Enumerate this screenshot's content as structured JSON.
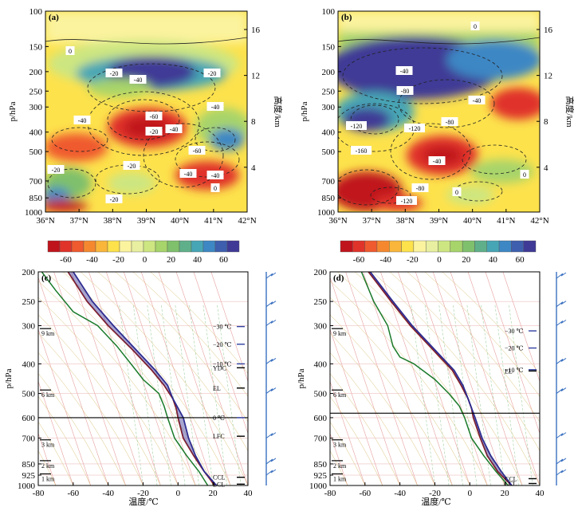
{
  "chart_data": [
    {
      "type": "heatmap",
      "panel": "(a)",
      "ylabel": "p/hPa",
      "y2label": "高度/km",
      "x_ticks": [
        "36°N",
        "37°N",
        "38°N",
        "39°N",
        "40°N",
        "41°N",
        "42°N"
      ],
      "y_ticks": [
        "100",
        "150",
        "200",
        "250",
        "300",
        "400",
        "500",
        "700",
        "850",
        "1000"
      ],
      "y2_ticks": [
        "16",
        "12",
        "8",
        "4"
      ],
      "contour_labels": [
        "0",
        "-20",
        "-40",
        "-20",
        "-40",
        "-60",
        "-20",
        "-40",
        "-40",
        "-60",
        "-20",
        "-40",
        "-40",
        "-20",
        "0",
        "-20"
      ]
    },
    {
      "type": "heatmap",
      "panel": "(b)",
      "ylabel": "p/hPa",
      "y2label": "高度/km",
      "x_ticks": [
        "36°N",
        "37°N",
        "38°N",
        "39°N",
        "40°N",
        "41°N",
        "42°N"
      ],
      "y_ticks": [
        "100",
        "150",
        "200",
        "250",
        "300",
        "400",
        "500",
        "700",
        "850",
        "1000"
      ],
      "y2_ticks": [
        "16",
        "12",
        "8",
        "4"
      ],
      "contour_labels": [
        "0",
        "-40",
        "-80",
        "-40",
        "-120",
        "-120",
        "-80",
        "-160",
        "-40",
        "0",
        "-80",
        "-120",
        "0"
      ]
    },
    {
      "type": "colorbar",
      "ticks": [
        "-60",
        "-40",
        "-20",
        "0",
        "20",
        "40",
        "60"
      ],
      "colors": [
        "#c0141c",
        "#e0332a",
        "#ef5a2e",
        "#f5882f",
        "#f9b63a",
        "#fde24c",
        "#fbf39e",
        "#e8efa0",
        "#cde681",
        "#a7d46b",
        "#7fc06c",
        "#5fb08a",
        "#47a6b5",
        "#3d87c4",
        "#3e5fae",
        "#3f3a96"
      ]
    },
    {
      "type": "line",
      "panel": "(c)",
      "ylabel": "p/hPa",
      "xlabel": "温度/℃",
      "x_ticks": [
        "-80",
        "-60",
        "-40",
        "-20",
        "0",
        "20",
        "40"
      ],
      "y_ticks": [
        "200",
        "250",
        "300",
        "400",
        "500",
        "600",
        "700",
        "850",
        "925",
        "1000"
      ],
      "height_labels": [
        "9 km",
        "6 km",
        "3 km",
        "2 km",
        "1 km"
      ],
      "levels": [
        "−30 ℃",
        "−20 ℃",
        "−10 ℃",
        "YDC",
        "EL",
        "0 ℃",
        "LFC",
        "CCL",
        "LCL"
      ],
      "series": [
        {
          "name": "",
          "color": "#1a7a2a",
          "points": [
            [
              -78,
              200
            ],
            [
              -70,
              230
            ],
            [
              -60,
              270
            ],
            [
              -46,
              300
            ],
            [
              -35,
              350
            ],
            [
              -27,
              400
            ],
            [
              -20,
              450
            ],
            [
              -11,
              500
            ],
            [
              -8,
              550
            ],
            [
              -6,
              600
            ],
            [
              -2,
              700
            ],
            [
              5,
              800
            ],
            [
              12,
              900
            ],
            [
              17,
              1000
            ]
          ]
        },
        {
          "name": "",
          "color": "#8a1a1a",
          "points": [
            [
              -63,
              200
            ],
            [
              -52,
              250
            ],
            [
              -40,
              300
            ],
            [
              -26,
              360
            ],
            [
              -15,
              420
            ],
            [
              -8,
              470
            ],
            [
              -3,
              520
            ],
            [
              -1,
              560
            ],
            [
              0,
              600
            ],
            [
              3,
              700
            ],
            [
              9,
              800
            ],
            [
              15,
              900
            ],
            [
              21,
              1000
            ]
          ]
        },
        {
          "name": "",
          "color": "#2a2a90",
          "points": [
            [
              -60,
              200
            ],
            [
              -49,
              250
            ],
            [
              -37,
              300
            ],
            [
              -24,
              360
            ],
            [
              -13,
              420
            ],
            [
              -6,
              470
            ],
            [
              -3,
              520
            ],
            [
              3,
              600
            ],
            [
              6,
              700
            ],
            [
              10,
              800
            ],
            [
              15,
              900
            ],
            [
              22,
              1000
            ]
          ]
        }
      ]
    },
    {
      "type": "line",
      "panel": "(d)",
      "ylabel": "p/hPa",
      "xlabel": "温度/℃",
      "x_ticks": [
        "-80",
        "-60",
        "-40",
        "-20",
        "0",
        "20",
        "40"
      ],
      "y_ticks": [
        "200",
        "250",
        "300",
        "400",
        "500",
        "600",
        "700",
        "850",
        "925",
        "1000"
      ],
      "height_labels": [
        "9 km",
        "6 km",
        "3 km",
        "2 km",
        "1 km"
      ],
      "levels": [
        "−30 ℃",
        "−20 ℃",
        "−10 ℃",
        "EL",
        "CCL",
        "LCL"
      ],
      "series": [
        {
          "name": "",
          "color": "#1a7a2a",
          "points": [
            [
              -62,
              200
            ],
            [
              -55,
              250
            ],
            [
              -47,
              300
            ],
            [
              -44,
              350
            ],
            [
              -40,
              380
            ],
            [
              -32,
              400
            ],
            [
              -20,
              450
            ],
            [
              -12,
              500
            ],
            [
              -6,
              550
            ],
            [
              -3,
              600
            ],
            [
              1,
              700
            ],
            [
              8,
              800
            ],
            [
              15,
              900
            ],
            [
              22,
              1000
            ]
          ]
        },
        {
          "name": "",
          "color": "#8a1a1a",
          "points": [
            [
              -58,
              200
            ],
            [
              -45,
              250
            ],
            [
              -34,
              300
            ],
            [
              -21,
              360
            ],
            [
              -10,
              420
            ],
            [
              -5,
              470
            ],
            [
              -1,
              520
            ],
            [
              1,
              560
            ],
            [
              2,
              600
            ],
            [
              6,
              700
            ],
            [
              10,
              800
            ],
            [
              16,
              900
            ],
            [
              24,
              1000
            ]
          ]
        },
        {
          "name": "",
          "color": "#2a2a90",
          "points": [
            [
              -57,
              200
            ],
            [
              -44,
              250
            ],
            [
              -33,
              300
            ],
            [
              -20,
              360
            ],
            [
              -9,
              420
            ],
            [
              -4,
              470
            ],
            [
              -1,
              520
            ],
            [
              3,
              600
            ],
            [
              7,
              700
            ],
            [
              12,
              800
            ],
            [
              18,
              900
            ],
            [
              24,
              1000
            ]
          ]
        }
      ]
    }
  ]
}
